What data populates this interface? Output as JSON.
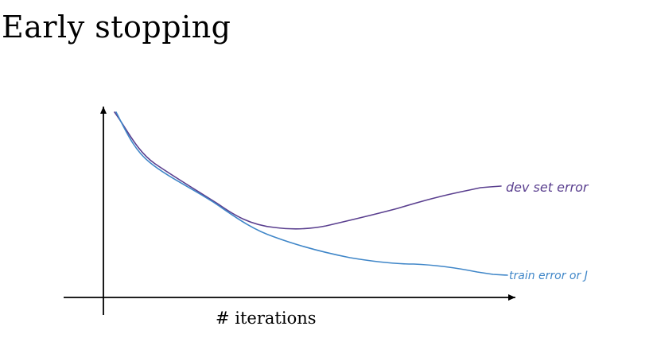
{
  "title": "Early stopping",
  "diagram": {
    "x_axis_label": "# iterations",
    "curves": [
      {
        "label": "dev set error",
        "color": "#5a3f8f"
      },
      {
        "label": "train error or J",
        "color": "#3f86c8"
      }
    ],
    "axis_color": "#000000"
  }
}
